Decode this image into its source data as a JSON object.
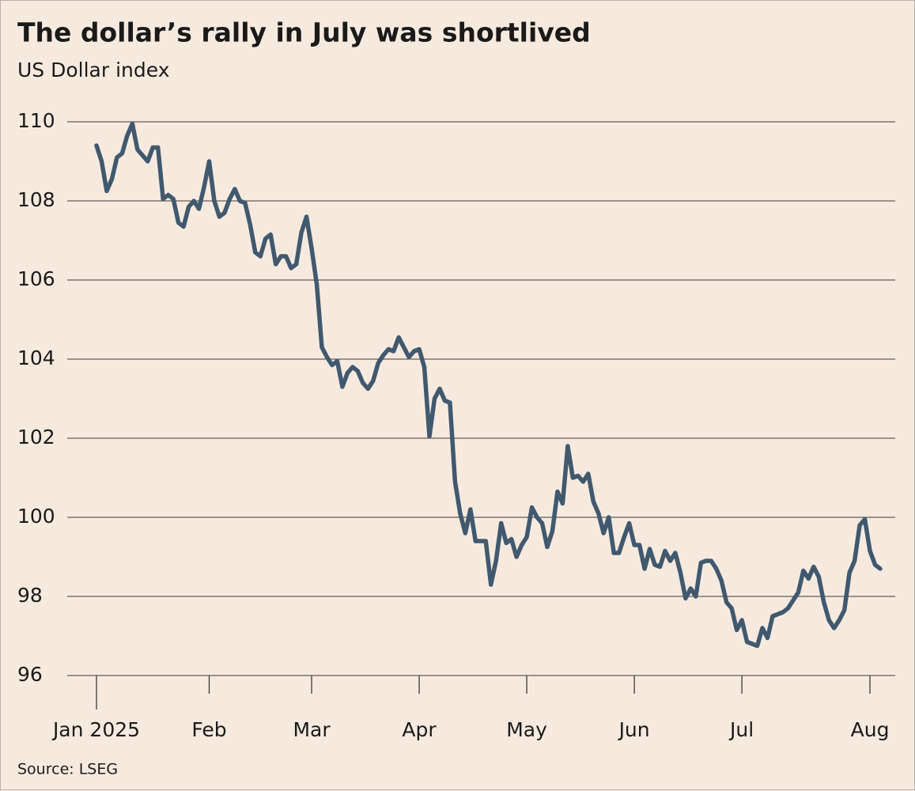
{
  "chart_data": {
    "type": "line",
    "title": "The dollar’s rally in July was shortlived",
    "subtitle": "US Dollar index",
    "source": "Source: LSEG",
    "categories": [
      "Jan 2025",
      null,
      null,
      null,
      null,
      null,
      null,
      null,
      null,
      null,
      null,
      null,
      null,
      null,
      null,
      null,
      null,
      null,
      null,
      null,
      null,
      null,
      "Feb",
      null,
      null,
      null,
      null,
      null,
      null,
      null,
      null,
      null,
      null,
      null,
      null,
      null,
      null,
      null,
      null,
      null,
      null,
      null,
      "Mar",
      null,
      null,
      null,
      null,
      null,
      null,
      null,
      null,
      null,
      null,
      null,
      null,
      null,
      null,
      null,
      null,
      null,
      null,
      null,
      null,
      "Apr",
      null,
      null,
      null,
      null,
      null,
      null,
      null,
      null,
      null,
      null,
      null,
      null,
      null,
      null,
      null,
      null,
      null,
      null,
      null,
      null,
      "May",
      null,
      null,
      null,
      null,
      null,
      null,
      null,
      null,
      null,
      null,
      null,
      null,
      null,
      null,
      null,
      null,
      null,
      null,
      null,
      null,
      "Jun",
      null,
      null,
      null,
      null,
      null,
      null,
      null,
      null,
      null,
      null,
      null,
      null,
      null,
      null,
      null,
      null,
      null,
      null,
      null,
      null,
      "Jul",
      null,
      null,
      null,
      null,
      null,
      null,
      null,
      null,
      null,
      null,
      null,
      null,
      null,
      null,
      null,
      null,
      null,
      null,
      null,
      null,
      null,
      null,
      null,
      null,
      "Aug",
      null,
      null
    ],
    "series": [
      {
        "name": "US Dollar index",
        "color": "#41596f",
        "values": [
          109.4,
          109.0,
          108.25,
          108.55,
          109.1,
          109.2,
          109.65,
          109.95,
          109.3,
          109.15,
          109.0,
          109.35,
          109.35,
          108.05,
          108.15,
          108.05,
          107.45,
          107.35,
          107.85,
          108.0,
          107.8,
          108.35,
          109.0,
          108.0,
          107.6,
          107.7,
          108.05,
          108.3,
          108.0,
          107.95,
          107.4,
          106.7,
          106.6,
          107.05,
          107.15,
          106.4,
          106.6,
          106.6,
          106.3,
          106.4,
          107.2,
          107.6,
          106.8,
          105.9,
          104.3,
          104.05,
          103.85,
          103.95,
          103.3,
          103.65,
          103.8,
          103.7,
          103.4,
          103.25,
          103.45,
          103.9,
          104.1,
          104.25,
          104.2,
          104.55,
          104.3,
          104.05,
          104.2,
          104.25,
          103.8,
          102.05,
          103.0,
          103.25,
          102.95,
          102.9,
          100.9,
          100.1,
          99.6,
          100.2,
          99.4,
          99.4,
          99.4,
          98.3,
          98.9,
          99.85,
          99.35,
          99.45,
          99.0,
          99.3,
          99.5,
          100.25,
          100.0,
          99.85,
          99.25,
          99.65,
          100.65,
          100.35,
          101.8,
          101.0,
          101.05,
          100.9,
          101.1,
          100.4,
          100.1,
          99.6,
          100.0,
          99.1,
          99.1,
          99.5,
          99.85,
          99.3,
          99.3,
          98.7,
          99.2,
          98.8,
          98.75,
          99.15,
          98.9,
          99.1,
          98.6,
          97.95,
          98.2,
          98.0,
          98.85,
          98.9,
          98.9,
          98.7,
          98.4,
          97.85,
          97.7,
          97.15,
          97.4,
          96.85,
          96.8,
          96.75,
          97.2,
          96.95,
          97.5,
          97.55,
          97.6,
          97.7,
          97.9,
          98.1,
          98.65,
          98.45,
          98.75,
          98.5,
          97.85,
          97.4,
          97.2,
          97.4,
          97.65,
          98.6,
          98.9,
          99.8,
          99.95,
          99.15,
          98.8,
          98.7
        ]
      }
    ],
    "ylim": [
      96,
      110
    ],
    "yticks": [
      96,
      98,
      100,
      102,
      104,
      106,
      108,
      110
    ],
    "grid": true
  }
}
